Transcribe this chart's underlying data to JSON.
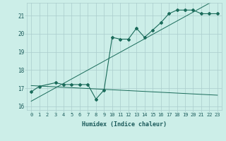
{
  "xlabel": "Humidex (Indice chaleur)",
  "bg_color": "#cceee8",
  "grid_color": "#aacccc",
  "line_color": "#1a6b5a",
  "x_data": [
    0,
    1,
    2,
    3,
    4,
    5,
    6,
    7,
    8,
    9,
    10,
    11,
    12,
    13,
    14,
    15,
    16,
    17,
    18,
    19,
    20,
    21,
    22,
    23
  ],
  "y_data": [
    16.8,
    17.1,
    null,
    17.3,
    17.2,
    17.2,
    17.2,
    17.2,
    16.4,
    16.9,
    19.8,
    19.7,
    19.7,
    20.3,
    19.8,
    20.2,
    20.6,
    21.1,
    21.3,
    21.3,
    21.3,
    21.1,
    21.1,
    21.1
  ],
  "xlim": [
    -0.5,
    23.5
  ],
  "ylim": [
    15.8,
    21.7
  ],
  "yticks": [
    16,
    17,
    18,
    19,
    20,
    21
  ],
  "xticks": [
    0,
    1,
    2,
    3,
    4,
    5,
    6,
    7,
    8,
    9,
    10,
    11,
    12,
    13,
    14,
    15,
    16,
    17,
    18,
    19,
    20,
    21,
    22,
    23
  ],
  "figsize": [
    3.2,
    2.0
  ],
  "dpi": 100
}
